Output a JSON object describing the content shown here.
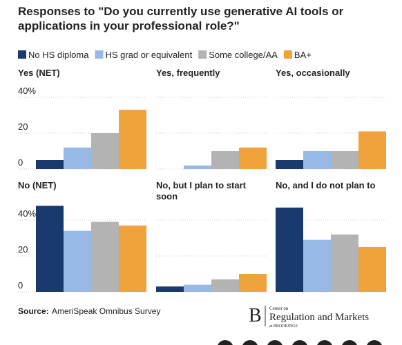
{
  "chart_data": {
    "type": "bar",
    "title": [
      "Responses to \"Do you currently use generative AI tools or",
      "applications in your professional role?\""
    ],
    "series": [
      {
        "name": "No HS diploma",
        "color": "#1a3a6e"
      },
      {
        "name": "HS grad or equivalent",
        "color": "#98b9e6"
      },
      {
        "name": "Some college/AA",
        "color": "#b3b3b3"
      },
      {
        "name": "BA+",
        "color": "#f0a23d"
      }
    ],
    "panels": [
      {
        "title": [
          "Yes (NET)"
        ],
        "values": [
          5,
          12,
          20,
          33
        ]
      },
      {
        "title": [
          "Yes, frequently"
        ],
        "values": [
          0,
          2,
          10,
          12
        ]
      },
      {
        "title": [
          "Yes, occasionally"
        ],
        "values": [
          5,
          10,
          10,
          21
        ]
      },
      {
        "title": [
          "No (NET)"
        ],
        "values": [
          48,
          34,
          39,
          37
        ]
      },
      {
        "title": [
          "No, but I plan to start",
          "soon"
        ],
        "values": [
          3,
          4,
          7,
          10
        ]
      },
      {
        "title": [
          "No, and I do not plan to"
        ],
        "values": [
          47,
          29,
          32,
          25
        ]
      }
    ],
    "ylim": [
      0,
      50
    ],
    "yticks": [
      0,
      20,
      {
        "value": 40,
        "label": "40%"
      }
    ],
    "grid": true,
    "source_label": "Source:",
    "source_text": "AmeriSpeak Omnibus Survey",
    "logo": {
      "letter": "B",
      "line1": "Center on",
      "line2": "Regulation and Markets",
      "line3": "at BROOKINGS"
    }
  }
}
